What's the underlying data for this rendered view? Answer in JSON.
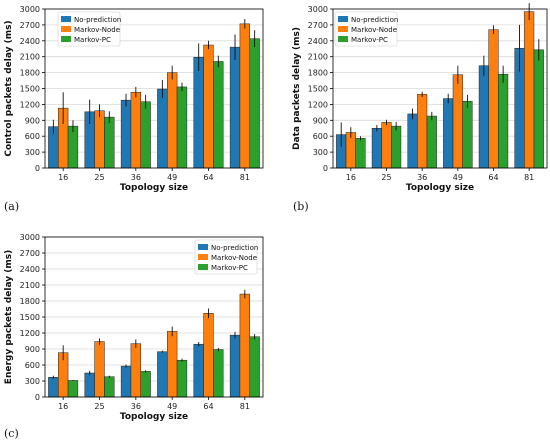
{
  "chart_data": [
    {
      "type": "bar",
      "panel_label": "(a)",
      "categories": [
        "16",
        "25",
        "36",
        "49",
        "64",
        "81"
      ],
      "xlabel": "Topology size",
      "ylabel": "Control packets delay (ms)",
      "ylim": [
        0,
        3000
      ],
      "yticks": [
        "0",
        "300",
        "600",
        "900",
        "1200",
        "1500",
        "1800",
        "2100",
        "2400",
        "2700",
        "3000"
      ],
      "grid": "horizontal",
      "legend_position": "top-left",
      "series": [
        {
          "name": "No-prediction",
          "color": "#1f77b4",
          "values": [
            780,
            1060,
            1280,
            1490,
            2090,
            2280
          ],
          "errors": [
            130,
            230,
            120,
            170,
            260,
            240
          ]
        },
        {
          "name": "Markov-Node",
          "color": "#ff7f0e",
          "values": [
            1130,
            1080,
            1430,
            1800,
            2320,
            2720
          ],
          "errors": [
            300,
            120,
            100,
            130,
            80,
            90
          ]
        },
        {
          "name": "Markov-PC",
          "color": "#2ca02c",
          "values": [
            790,
            960,
            1250,
            1530,
            2010,
            2440
          ],
          "errors": [
            110,
            110,
            130,
            80,
            110,
            160
          ]
        }
      ]
    },
    {
      "type": "bar",
      "panel_label": "(b)",
      "categories": [
        "16",
        "25",
        "36",
        "49",
        "64",
        "81"
      ],
      "xlabel": "Topology size",
      "ylabel": "Data packets delay (ms)",
      "ylim": [
        0,
        3000
      ],
      "yticks": [
        "0",
        "300",
        "600",
        "900",
        "1200",
        "1500",
        "1800",
        "2100",
        "2400",
        "2700",
        "3000"
      ],
      "grid": "horizontal",
      "legend_position": "top-left",
      "series": [
        {
          "name": "No-prediction",
          "color": "#1f77b4",
          "values": [
            630,
            750,
            1020,
            1310,
            1930,
            2260
          ],
          "errors": [
            230,
            60,
            100,
            90,
            190,
            440
          ]
        },
        {
          "name": "Markov-Node",
          "color": "#ff7f0e",
          "values": [
            670,
            860,
            1390,
            1760,
            2610,
            2950
          ],
          "errors": [
            100,
            50,
            50,
            170,
            80,
            160
          ]
        },
        {
          "name": "Markov-PC",
          "color": "#2ca02c",
          "values": [
            560,
            790,
            980,
            1260,
            1770,
            2230
          ],
          "errors": [
            40,
            80,
            80,
            120,
            160,
            200
          ]
        }
      ]
    },
    {
      "type": "bar",
      "panel_label": "(c)",
      "categories": [
        "16",
        "25",
        "36",
        "49",
        "64",
        "81"
      ],
      "xlabel": "Topology size",
      "ylabel": "Energy packets delay (ms)",
      "ylim": [
        0,
        3000
      ],
      "yticks": [
        "0",
        "300",
        "600",
        "900",
        "1200",
        "1500",
        "1800",
        "2100",
        "2400",
        "2700",
        "3000"
      ],
      "grid": "horizontal",
      "legend_position": "top-right",
      "series": [
        {
          "name": "No-prediction",
          "color": "#1f77b4",
          "values": [
            370,
            450,
            580,
            850,
            990,
            1160
          ],
          "errors": [
            30,
            40,
            30,
            20,
            40,
            60
          ]
        },
        {
          "name": "Markov-Node",
          "color": "#ff7f0e",
          "values": [
            830,
            1040,
            1000,
            1230,
            1570,
            1930
          ],
          "errors": [
            140,
            60,
            80,
            90,
            90,
            80
          ]
        },
        {
          "name": "Markov-PC",
          "color": "#2ca02c",
          "values": [
            310,
            380,
            480,
            690,
            890,
            1130
          ],
          "errors": [
            10,
            20,
            20,
            30,
            30,
            50
          ]
        }
      ]
    }
  ]
}
